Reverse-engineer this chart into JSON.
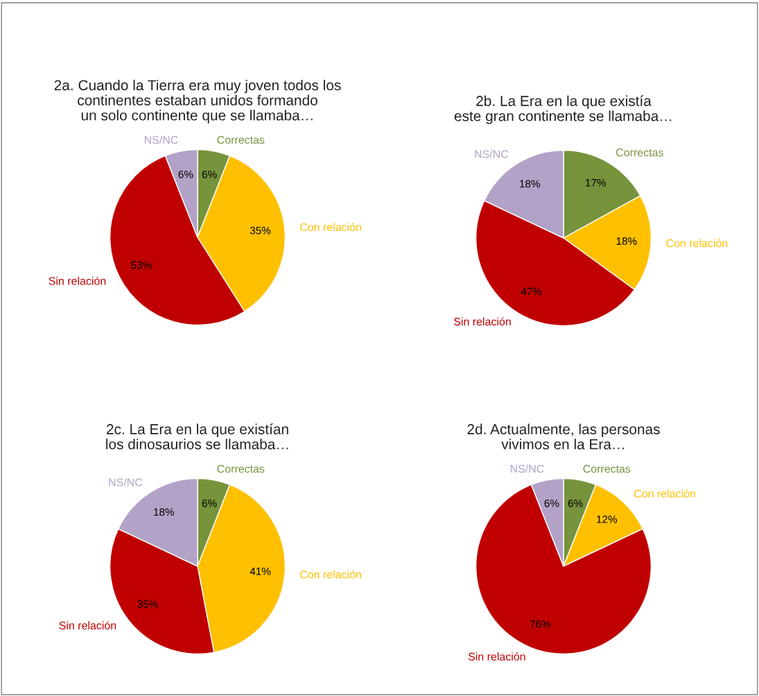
{
  "chart_data": [
    {
      "type": "pie",
      "title": "2a. Cuando la Tierra era muy joven todos los\ncontinentes estaban unidos formando\nun solo continente que se llamaba…",
      "categories": [
        "Correctas",
        "Con relación",
        "Sin relación",
        "NS/NC"
      ],
      "values": [
        6,
        35,
        53,
        6
      ],
      "value_labels": [
        "6%",
        "35%",
        "53%",
        "6%"
      ],
      "colors": [
        "#77933c",
        "#ffc000",
        "#c00000",
        "#b3a2c7"
      ],
      "legend": false
    },
    {
      "type": "pie",
      "title": "2b. La Era en la que existía\neste gran continente se llamaba…",
      "categories": [
        "Correctas",
        "Con relación",
        "Sin relación",
        "NS/NC"
      ],
      "values": [
        17,
        18,
        47,
        18
      ],
      "value_labels": [
        "17%",
        "18%",
        "47%",
        "18%"
      ],
      "colors": [
        "#77933c",
        "#ffc000",
        "#c00000",
        "#b3a2c7"
      ],
      "legend": false
    },
    {
      "type": "pie",
      "title": "2c. La Era en la que existían\nlos dinosaurios se llamaba…",
      "categories": [
        "Correctas",
        "Con relación",
        "Sin relación",
        "NS/NC"
      ],
      "values": [
        6,
        41,
        35,
        18
      ],
      "value_labels": [
        "6%",
        "41%",
        "35%",
        "18%"
      ],
      "colors": [
        "#77933c",
        "#ffc000",
        "#c00000",
        "#b3a2c7"
      ],
      "legend": false
    },
    {
      "type": "pie",
      "title": "2d. Actualmente, las personas\nvivimos en la Era…",
      "categories": [
        "Correctas",
        "Con relación",
        "Sin relación",
        "NS/NC"
      ],
      "values": [
        6,
        12,
        76,
        6
      ],
      "value_labels": [
        "6%",
        "12%",
        "76%",
        "6%"
      ],
      "colors": [
        "#77933c",
        "#ffc000",
        "#c00000",
        "#b3a2c7"
      ],
      "legend": false
    }
  ]
}
